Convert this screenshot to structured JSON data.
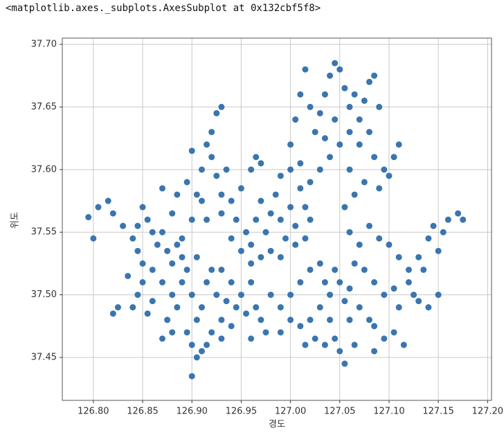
{
  "output_text": "<matplotlib.axes._subplots.AxesSubplot at 0x132cbf5f8>",
  "chart_data": {
    "type": "scatter",
    "x_label": "경도",
    "y_label": "위도",
    "color": "#3a75b0",
    "grid": true,
    "xlim": [
      126.7685,
      127.204
    ],
    "ylim": [
      37.4157,
      37.705
    ],
    "xticks": [
      {
        "value": 126.8,
        "label": "126.80"
      },
      126.85,
      {
        "value": 126.9,
        "label": "126.90"
      },
      126.95,
      {
        "value": 127.0,
        "label": "127.00"
      },
      127.05,
      {
        "value": 127.1,
        "label": "127.10"
      },
      127.15,
      {
        "value": 127.2,
        "label": "127.20"
      }
    ],
    "yticks": [
      37.45,
      {
        "value": 37.5,
        "label": "37.50"
      },
      37.55,
      {
        "value": 37.6,
        "label": "37.60"
      },
      37.65,
      {
        "value": 37.7,
        "label": "37.70"
      }
    ],
    "x": [
      126.795,
      126.8,
      126.805,
      126.815,
      126.82,
      126.83,
      126.84,
      126.845,
      126.85,
      126.855,
      126.86,
      126.865,
      126.85,
      126.845,
      126.84,
      126.825,
      126.82,
      126.835,
      126.86,
      126.87,
      126.875,
      126.87,
      126.86,
      126.855,
      126.88,
      126.885,
      126.89,
      126.85,
      126.845,
      126.88,
      126.885,
      126.89,
      126.895,
      126.9,
      126.905,
      126.9,
      126.905,
      126.91,
      126.9,
      126.895,
      126.91,
      126.915,
      126.92,
      126.925,
      126.93,
      126.935,
      126.94,
      126.945,
      126.95,
      126.955,
      126.92,
      126.915,
      126.93,
      126.94,
      126.875,
      126.87,
      126.88,
      126.89,
      126.905,
      126.93,
      126.96,
      126.965,
      126.97,
      126.975,
      126.96,
      126.9,
      126.905,
      126.91,
      126.915,
      126.92,
      126.925,
      126.93,
      126.92,
      126.925,
      126.93,
      126.935,
      126.91,
      126.895,
      126.9,
      126.915,
      126.93,
      126.94,
      126.945,
      126.88,
      126.87,
      126.885,
      126.95,
      126.96,
      126.965,
      126.97,
      126.955,
      126.96,
      126.965,
      126.97,
      126.975,
      126.98,
      126.985,
      126.99,
      126.995,
      127.0,
      127.005,
      127.01,
      127.015,
      127.02,
      126.98,
      126.97,
      126.96,
      126.99,
      127.005,
      127.015,
      126.99,
      127.0,
      126.94,
      126.95,
      127.0,
      127.005,
      127.01,
      127.015,
      127.02,
      127.025,
      127.03,
      127.035,
      127.04,
      127.045,
      127.05,
      127.055,
      127.06,
      127.065,
      127.07,
      127.075,
      127.08,
      127.085,
      127.09,
      127.08,
      127.07,
      127.06,
      127.05,
      127.04,
      127.03,
      127.02,
      127.01,
      127.085,
      127.095,
      127.1,
      127.105,
      127.11,
      127.09,
      127.035,
      127.045,
      127.06,
      127.065,
      127.055,
      127.075,
      127.06,
      127.07,
      127.08,
      127.09,
      127.1,
      127.065,
      127.075,
      127.085,
      127.095,
      127.105,
      127.11,
      127.12,
      127.125,
      127.13,
      127.135,
      127.13,
      127.14,
      127.145,
      127.15,
      127.155,
      127.16,
      127.17,
      127.175,
      127.15,
      127.14,
      127.12,
      127.11,
      127.105,
      127.095,
      127.085,
      127.08,
      127.115,
      126.99,
      127.0,
      127.01,
      127.02,
      127.03,
      127.035,
      127.04,
      127.045,
      127.05,
      127.055,
      127.06,
      127.03,
      127.02,
      127.01,
      127.0,
      127.04,
      127.045,
      127.05,
      127.055,
      127.035,
      127.025,
      127.015,
      126.99,
      126.98,
      127.06,
      127.07,
      127.065,
      127.085
    ],
    "y": [
      37.562,
      37.545,
      37.57,
      37.575,
      37.565,
      37.555,
      37.545,
      37.535,
      37.525,
      37.56,
      37.55,
      37.54,
      37.51,
      37.5,
      37.49,
      37.49,
      37.485,
      37.515,
      37.52,
      37.55,
      37.535,
      37.51,
      37.495,
      37.485,
      37.525,
      37.54,
      37.545,
      37.57,
      37.555,
      37.5,
      37.49,
      37.51,
      37.52,
      37.5,
      37.48,
      37.46,
      37.45,
      37.455,
      37.435,
      37.47,
      37.49,
      37.51,
      37.52,
      37.5,
      37.48,
      37.495,
      37.51,
      37.49,
      37.5,
      37.485,
      37.47,
      37.46,
      37.465,
      37.475,
      37.48,
      37.465,
      37.47,
      37.53,
      37.53,
      37.52,
      37.51,
      37.49,
      37.48,
      37.47,
      37.465,
      37.56,
      37.58,
      37.6,
      37.62,
      37.63,
      37.645,
      37.65,
      37.61,
      37.595,
      37.58,
      37.6,
      37.575,
      37.59,
      37.615,
      37.56,
      37.565,
      37.575,
      37.56,
      37.565,
      37.585,
      37.58,
      37.585,
      37.6,
      37.61,
      37.605,
      37.55,
      37.54,
      37.56,
      37.575,
      37.55,
      37.565,
      37.58,
      37.56,
      37.545,
      37.57,
      37.555,
      37.585,
      37.57,
      37.56,
      37.535,
      37.53,
      37.525,
      37.53,
      37.54,
      37.545,
      37.595,
      37.6,
      37.545,
      37.535,
      37.62,
      37.64,
      37.66,
      37.68,
      37.65,
      37.63,
      37.645,
      37.66,
      37.675,
      37.685,
      37.68,
      37.665,
      37.65,
      37.66,
      37.64,
      37.655,
      37.67,
      37.675,
      37.65,
      37.63,
      37.62,
      37.6,
      37.62,
      37.61,
      37.6,
      37.59,
      37.605,
      37.61,
      37.6,
      37.595,
      37.61,
      37.62,
      37.585,
      37.625,
      37.64,
      37.63,
      37.58,
      37.57,
      37.59,
      37.55,
      37.54,
      37.555,
      37.545,
      37.54,
      37.525,
      37.52,
      37.51,
      37.5,
      37.505,
      37.49,
      37.51,
      37.5,
      37.495,
      37.52,
      37.53,
      37.545,
      37.555,
      37.535,
      37.55,
      37.56,
      37.565,
      37.56,
      37.5,
      37.49,
      37.52,
      37.53,
      37.47,
      37.465,
      37.475,
      37.48,
      37.46,
      37.49,
      37.5,
      37.51,
      37.52,
      37.525,
      37.51,
      37.5,
      37.52,
      37.51,
      37.495,
      37.505,
      37.49,
      37.48,
      37.475,
      37.48,
      37.48,
      37.465,
      37.455,
      37.445,
      37.46,
      37.465,
      37.46,
      37.47,
      37.5,
      37.48,
      37.49,
      37.46,
      37.455
    ]
  }
}
